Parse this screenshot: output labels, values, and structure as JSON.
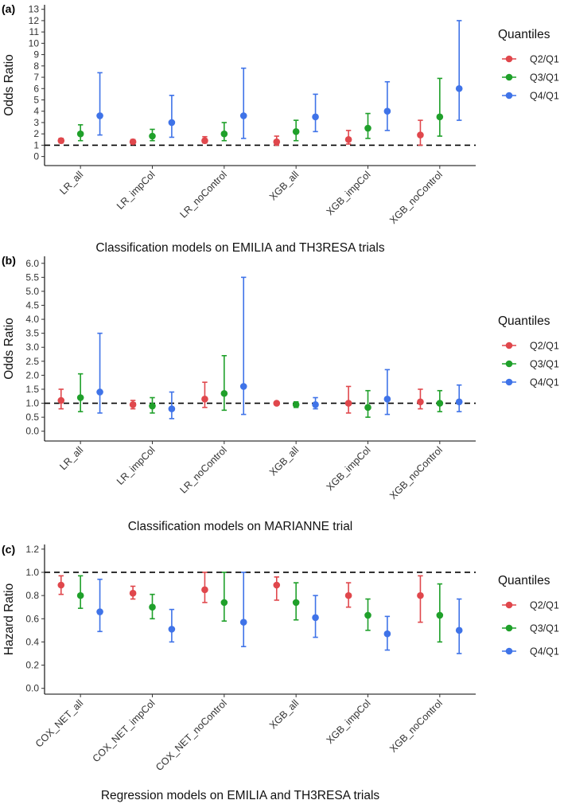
{
  "colors": {
    "Q2/Q1": "#E0474C",
    "Q3/Q1": "#1FA02A",
    "Q4/Q1": "#3F73E8",
    "reference_line": "#000000"
  },
  "chart_data": [
    {
      "panel_label": "(a)",
      "type": "scatter",
      "subtype": "point-range",
      "xlabel": "Classification models on EMILIA and TH3RESA trials",
      "ylabel": "Odds Ratio",
      "categories": [
        "LR_all",
        "LR_impCol",
        "LR_noControl",
        "XGB_all",
        "XGB_impCol",
        "XGB_noControl"
      ],
      "ylim": [
        -0.8,
        13.4
      ],
      "yticks": [
        0,
        1,
        2,
        3,
        4,
        5,
        6,
        7,
        8,
        9,
        10,
        11,
        12,
        13
      ],
      "ytick_labels": [
        "0",
        "1",
        "2",
        "3",
        "4",
        "5",
        "6",
        "7",
        "8",
        "9",
        "10",
        "11",
        "12",
        "13"
      ],
      "reference_line": 1,
      "legend_title": "Quantiles",
      "legend_position": "right",
      "grid": false,
      "series": [
        {
          "name": "Q2/Q1",
          "estimate": [
            1.4,
            1.3,
            1.4,
            1.3,
            1.5,
            1.9
          ],
          "lower": [
            1.2,
            1.2,
            1.2,
            1.0,
            1.1,
            1.0
          ],
          "upper": [
            1.6,
            1.5,
            1.75,
            1.8,
            2.3,
            3.2
          ]
        },
        {
          "name": "Q3/Q1",
          "estimate": [
            2.0,
            1.8,
            2.0,
            2.2,
            2.5,
            3.5
          ],
          "lower": [
            1.4,
            1.4,
            1.4,
            1.4,
            1.6,
            1.8
          ],
          "upper": [
            2.8,
            2.4,
            3.0,
            3.2,
            3.8,
            6.9
          ]
        },
        {
          "name": "Q4/Q1",
          "estimate": [
            3.6,
            3.0,
            3.6,
            3.5,
            4.0,
            6.0
          ],
          "lower": [
            1.9,
            1.7,
            1.6,
            2.2,
            2.3,
            3.2
          ],
          "upper": [
            7.4,
            5.4,
            7.8,
            5.5,
            6.6,
            12.0
          ]
        }
      ]
    },
    {
      "panel_label": "(b)",
      "type": "scatter",
      "subtype": "point-range",
      "xlabel": "Classification models on MARIANNE trial",
      "ylabel": "Odds Ratio",
      "categories": [
        "LR_all",
        "LR_impCol",
        "LR_noControl",
        "XGB_all",
        "XGB_impCol",
        "XGB_noControl"
      ],
      "ylim": [
        -0.35,
        6.25
      ],
      "yticks": [
        0,
        0.5,
        1,
        1.5,
        2,
        2.5,
        3,
        3.5,
        4,
        4.5,
        5,
        5.5,
        6
      ],
      "ytick_labels": [
        "0.0",
        "0.5",
        "1.0",
        "1.5",
        "2.0",
        "2.5",
        "3.0",
        "3.5",
        "4.0",
        "4.5",
        "5.0",
        "5.5",
        "6.0"
      ],
      "reference_line": 1,
      "legend_title": "Quantiles",
      "legend_position": "right",
      "grid": false,
      "series": [
        {
          "name": "Q2/Q1",
          "estimate": [
            1.1,
            0.95,
            1.15,
            1.0,
            1.0,
            1.05
          ],
          "lower": [
            0.8,
            0.8,
            0.85,
            0.95,
            0.65,
            0.8
          ],
          "upper": [
            1.5,
            1.1,
            1.75,
            1.05,
            1.6,
            1.5
          ]
        },
        {
          "name": "Q3/Q1",
          "estimate": [
            1.2,
            0.9,
            1.35,
            0.95,
            0.85,
            1.0
          ],
          "lower": [
            0.7,
            0.65,
            0.75,
            0.85,
            0.5,
            0.7
          ],
          "upper": [
            2.05,
            1.2,
            2.7,
            1.05,
            1.45,
            1.45
          ]
        },
        {
          "name": "Q4/Q1",
          "estimate": [
            1.4,
            0.8,
            1.6,
            0.95,
            1.15,
            1.05
          ],
          "lower": [
            0.65,
            0.45,
            0.6,
            0.8,
            0.6,
            0.7
          ],
          "upper": [
            3.5,
            1.4,
            5.5,
            1.2,
            2.2,
            1.65
          ]
        }
      ]
    },
    {
      "panel_label": "(c)",
      "type": "scatter",
      "subtype": "point-range",
      "xlabel": "Regression models on EMILIA and TH3RESA trials",
      "ylabel": "Hazard Ratio",
      "categories": [
        "COX_NET_all",
        "COX_NET_impCol",
        "COX_NET_noControl",
        "XGB_all",
        "XGB_impCol",
        "XGB_noControl"
      ],
      "ylim": [
        -0.05,
        1.24
      ],
      "yticks": [
        0,
        0.2,
        0.4,
        0.6,
        0.8,
        1.0,
        1.2
      ],
      "ytick_labels": [
        "0.0",
        "0.2",
        "0.4",
        "0.6",
        "0.8",
        "1.0",
        "1.2"
      ],
      "reference_line": 1,
      "legend_title": "Quantiles",
      "legend_position": "right",
      "grid": false,
      "series": [
        {
          "name": "Q2/Q1",
          "estimate": [
            0.89,
            0.82,
            0.85,
            0.89,
            0.8,
            0.8
          ],
          "lower": [
            0.81,
            0.77,
            0.74,
            0.76,
            0.7,
            0.57
          ],
          "upper": [
            0.97,
            0.88,
            1.0,
            0.96,
            0.91,
            0.97
          ]
        },
        {
          "name": "Q3/Q1",
          "estimate": [
            0.8,
            0.7,
            0.74,
            0.74,
            0.63,
            0.63
          ],
          "lower": [
            0.69,
            0.6,
            0.58,
            0.59,
            0.5,
            0.4
          ],
          "upper": [
            0.97,
            0.81,
            1.0,
            0.91,
            0.77,
            0.9
          ]
        },
        {
          "name": "Q4/Q1",
          "estimate": [
            0.66,
            0.51,
            0.57,
            0.61,
            0.47,
            0.5
          ],
          "lower": [
            0.49,
            0.4,
            0.36,
            0.44,
            0.33,
            0.3
          ],
          "upper": [
            0.94,
            0.68,
            1.0,
            0.8,
            0.62,
            0.77
          ]
        }
      ]
    }
  ]
}
